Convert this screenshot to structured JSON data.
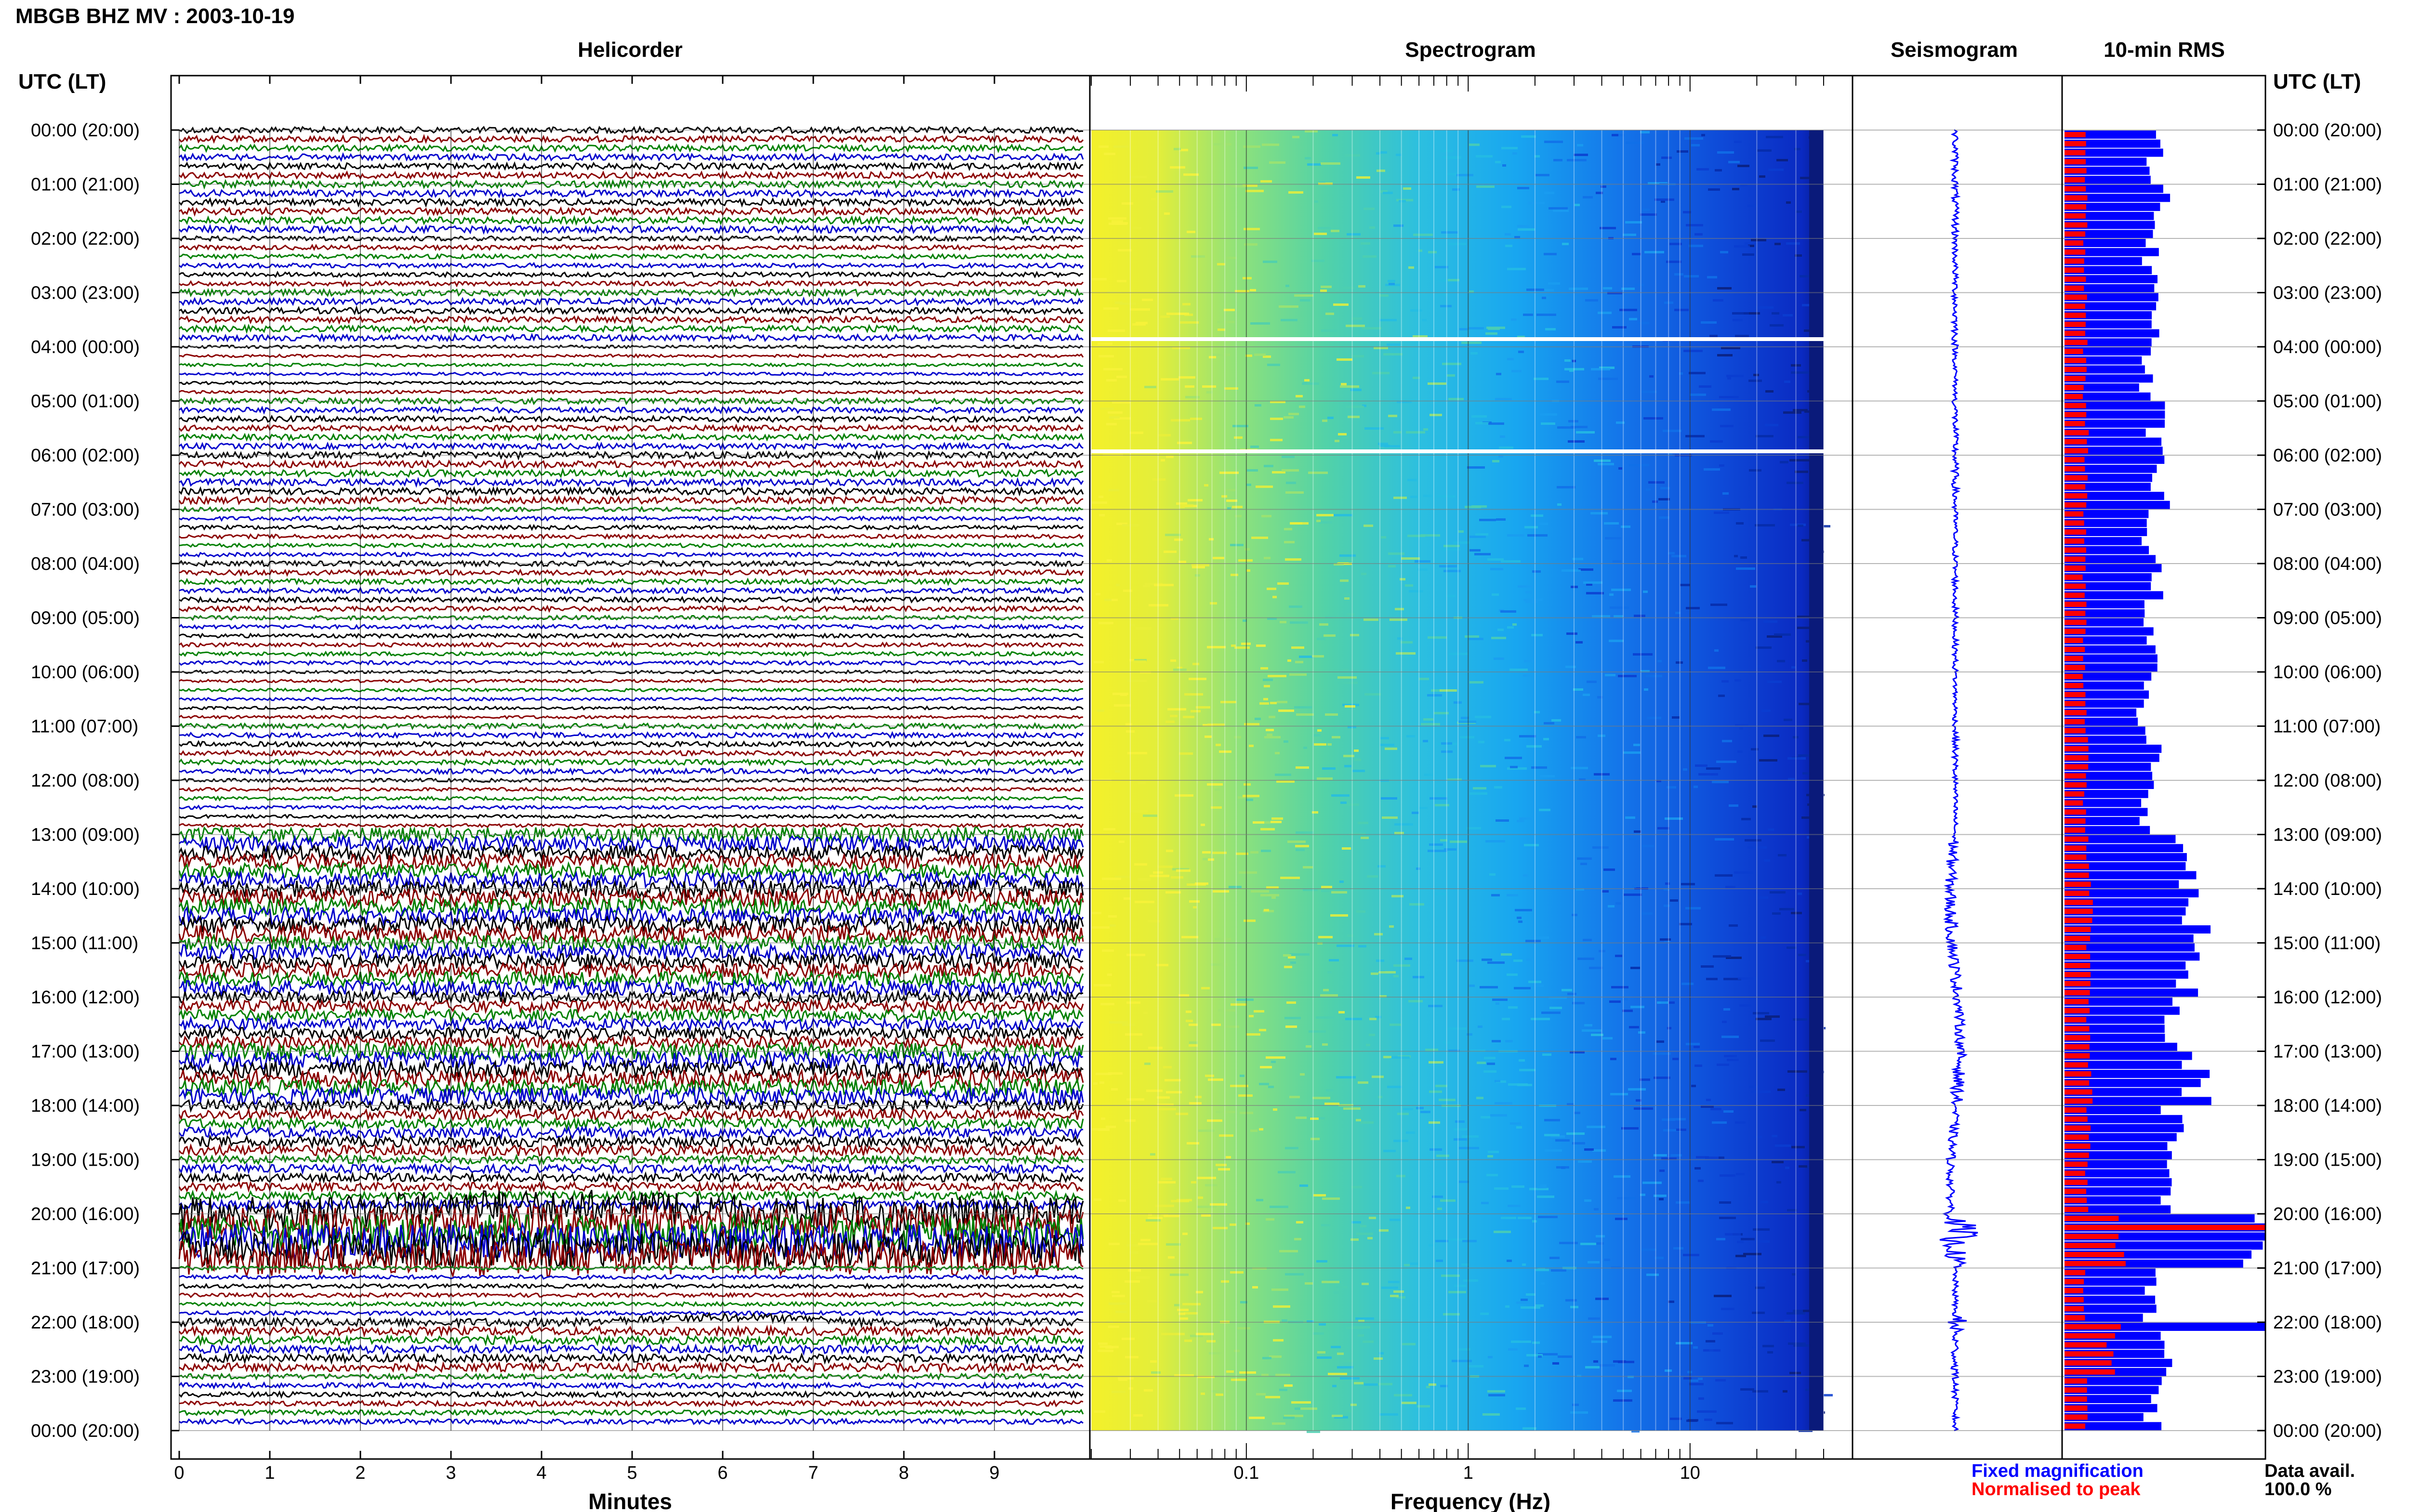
{
  "header": {
    "title": "MBGB BHZ MV : 2003-10-19"
  },
  "panels": {
    "helicorder": "Helicorder",
    "spectrogram": "Spectrogram",
    "seismogram": "Seismogram",
    "rms": "10-min RMS"
  },
  "axes": {
    "left_header": "UTC (LT)",
    "right_header": "UTC (LT)",
    "time_labels": [
      "00:00 (20:00)",
      "01:00 (21:00)",
      "02:00 (22:00)",
      "03:00 (23:00)",
      "04:00 (00:00)",
      "05:00 (01:00)",
      "06:00 (02:00)",
      "07:00 (03:00)",
      "08:00 (04:00)",
      "09:00 (05:00)",
      "10:00 (06:00)",
      "11:00 (07:00)",
      "12:00 (08:00)",
      "13:00 (09:00)",
      "14:00 (10:00)",
      "15:00 (11:00)",
      "16:00 (12:00)",
      "17:00 (13:00)",
      "18:00 (14:00)",
      "19:00 (15:00)",
      "20:00 (16:00)",
      "21:00 (17:00)",
      "22:00 (18:00)",
      "23:00 (19:00)",
      "00:00 (20:00)"
    ],
    "minutes_ticks": [
      "0",
      "1",
      "2",
      "3",
      "4",
      "5",
      "6",
      "7",
      "8",
      "9"
    ],
    "minutes_label": "Minutes",
    "freq_ticks": [
      "0.1",
      "1",
      "10"
    ],
    "freq_label": "Frequency (Hz)"
  },
  "legend": {
    "fixed": "Fixed magnification",
    "normalised": "Normalised to peak",
    "data_avail_label": "Data avail.",
    "data_avail_value": "100.0 %"
  },
  "colors": {
    "trace_cycle": [
      "#000000",
      "#8b0000",
      "#008000",
      "#0000cc"
    ],
    "rms_fixed": "#0000ff",
    "rms_normalised": "#ff0000",
    "legend_fixed": "#0000ff",
    "legend_normalised": "#ff0000"
  },
  "chart_data": {
    "type": "heatmap",
    "title": "MBGB BHZ MV : 2003-10-19",
    "helicorder": {
      "rows_per_hour": 6,
      "minutes_range": [
        0,
        10
      ],
      "trace_colors": [
        "black",
        "darkred",
        "green",
        "blue"
      ]
    },
    "spectrogram": {
      "x_scale": "log",
      "x_range_hz": [
        0.02,
        40
      ],
      "gaps_utc_hours": [
        3.9,
        5.95
      ]
    },
    "rms_10min": {
      "units": "relative",
      "hours": [
        0,
        1,
        2,
        3,
        4,
        5,
        6,
        7,
        8,
        9,
        10,
        11,
        12,
        13,
        14,
        15,
        16,
        17,
        18,
        19,
        20,
        21,
        22,
        23
      ],
      "fixed_magnification_by_hour": [
        0.46,
        0.47,
        0.43,
        0.46,
        0.4,
        0.45,
        0.47,
        0.42,
        0.44,
        0.42,
        0.4,
        0.44,
        0.41,
        0.62,
        0.66,
        0.62,
        0.56,
        0.66,
        0.54,
        0.5,
        1.0,
        0.42,
        0.5,
        0.44
      ],
      "normalised_to_peak_by_hour": [
        0.11,
        0.11,
        0.1,
        0.11,
        0.1,
        0.11,
        0.11,
        0.1,
        0.1,
        0.1,
        0.1,
        0.11,
        0.1,
        0.12,
        0.13,
        0.12,
        0.12,
        0.13,
        0.12,
        0.11,
        0.28,
        0.1,
        0.23,
        0.11
      ]
    },
    "events_utc": [
      "20:16",
      "21:58"
    ]
  }
}
